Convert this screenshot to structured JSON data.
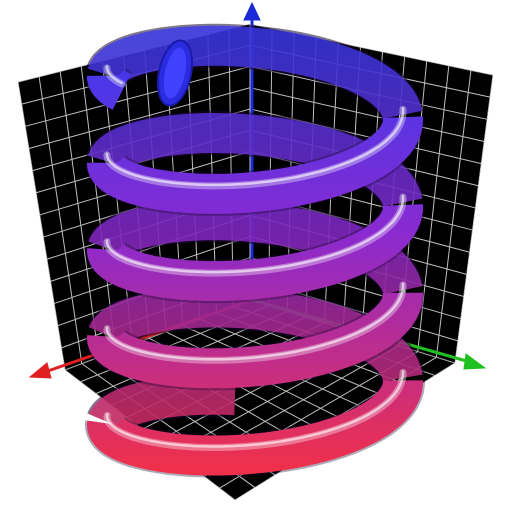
{
  "scene": {
    "colors": {
      "background": "#ffffff",
      "grid_panel": "#000000",
      "grid_line": "#bfbfbf",
      "axis_x": "#e02020",
      "axis_y": "#20c020",
      "axis_z": "#1a2ad8",
      "helix_top": "#3a3aee",
      "helix_mid": "#8a2ad0",
      "helix_bottom": "#f0304a"
    },
    "axes": [
      {
        "id": "x",
        "icon": "red-arrow-icon"
      },
      {
        "id": "y",
        "icon": "green-arrow-icon"
      },
      {
        "id": "z",
        "icon": "blue-arrow-icon"
      }
    ],
    "helix": {
      "turns": 4.3,
      "shape": "tube"
    }
  }
}
